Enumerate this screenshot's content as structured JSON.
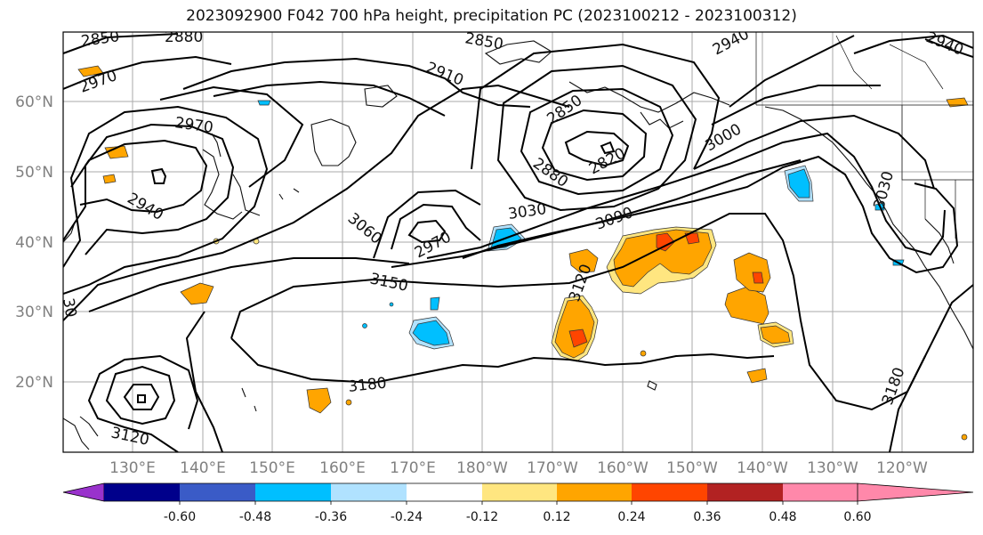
{
  "title": "2023092900 F042 700 hPa height, precipitation PC (2023100212 - 2023100312)",
  "latitude_labels": [
    "60°N",
    "50°N",
    "40°N",
    "30°N",
    "20°N"
  ],
  "longitude_labels": [
    "130°E",
    "140°E",
    "150°E",
    "160°E",
    "170°E",
    "180°W",
    "170°W",
    "160°W",
    "150°W",
    "140°W",
    "130°W",
    "120°W"
  ],
  "contour_labels": [
    "2850",
    "2880",
    "2970",
    "2850",
    "2910",
    "2940",
    "2940",
    "2970",
    "2850",
    "3000",
    "2880",
    "2820",
    "2940",
    "3060",
    "3030",
    "3090",
    "3030",
    "2970",
    "3150",
    "3120",
    "3180",
    "3120",
    "3180",
    "30"
  ],
  "colorbar": {
    "colors": [
      "#9932CC",
      "#00008B",
      "#3A5BC7",
      "#00BFFF",
      "#B0E2FF",
      "#FFFFFF",
      "#FFE680",
      "#FFA500",
      "#FF4500",
      "#B22222",
      "#FF88AA"
    ],
    "tick_labels": [
      "-0.60",
      "-0.48",
      "-0.36",
      "-0.24",
      "-0.12",
      "0.12",
      "0.24",
      "0.36",
      "0.48",
      "0.60"
    ]
  }
}
